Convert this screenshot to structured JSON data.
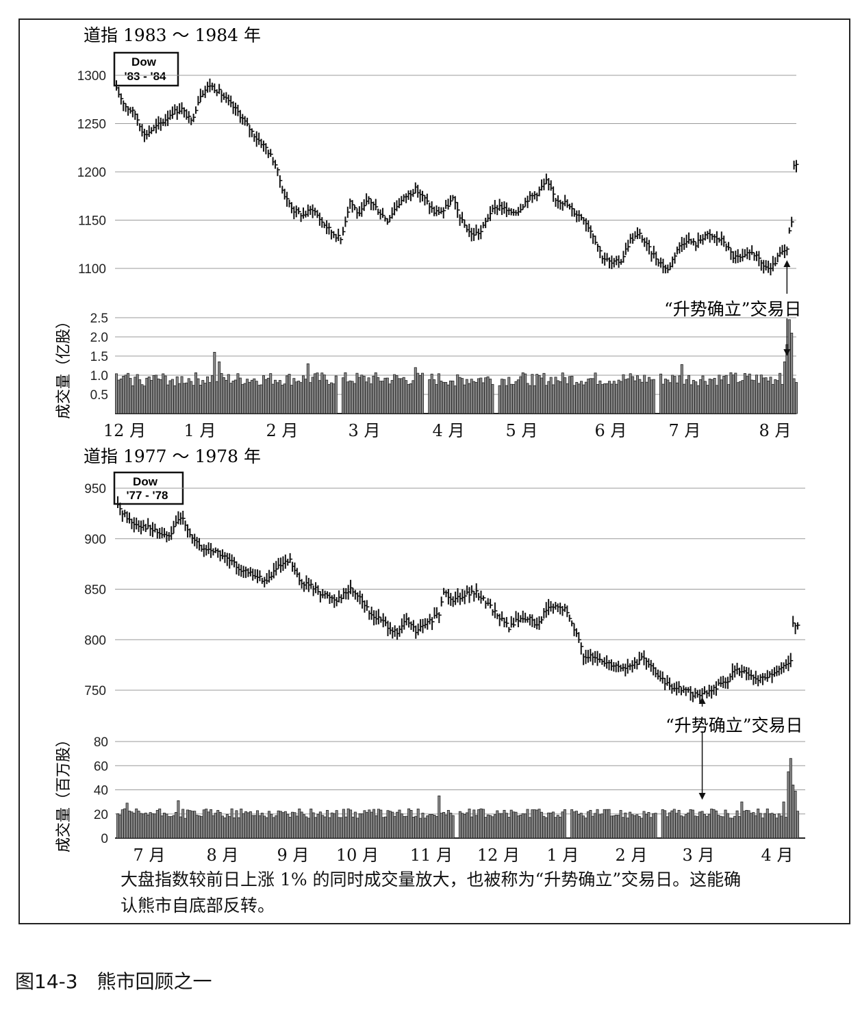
{
  "figure": {
    "label": "图14-3　熊市回顾之一",
    "caption": "大盘指数较前日上涨 1% 的同时成交量放大，也被称为“升势确立”交易日。这能确认熊市自底部反转。"
  },
  "chart_data": [
    {
      "type": "bar",
      "title": "道指 1983 ～ 1984 年",
      "badge": [
        "Dow",
        "'83 - '84"
      ],
      "ylim": [
        1080,
        1305
      ],
      "yticks": [
        1100,
        1150,
        1200,
        1250,
        1300
      ],
      "grid": true,
      "x_labels": [
        "12 月",
        "1 月",
        "2 月",
        "3 月",
        "4 月",
        "5 月",
        "6 月",
        "7 月",
        "8 月"
      ],
      "price_path": [
        [
          0,
          1285
        ],
        [
          4,
          1268
        ],
        [
          8,
          1260
        ],
        [
          12,
          1238
        ],
        [
          16,
          1245
        ],
        [
          20,
          1252
        ],
        [
          24,
          1262
        ],
        [
          28,
          1265
        ],
        [
          32,
          1252
        ],
        [
          36,
          1280
        ],
        [
          40,
          1290
        ],
        [
          44,
          1283
        ],
        [
          48,
          1272
        ],
        [
          52,
          1262
        ],
        [
          56,
          1248
        ],
        [
          60,
          1235
        ],
        [
          64,
          1225
        ],
        [
          68,
          1208
        ],
        [
          72,
          1175
        ],
        [
          76,
          1160
        ],
        [
          80,
          1155
        ],
        [
          84,
          1162
        ],
        [
          88,
          1148
        ],
        [
          92,
          1138
        ],
        [
          96,
          1130
        ],
        [
          100,
          1170
        ],
        [
          104,
          1155
        ],
        [
          108,
          1172
        ],
        [
          112,
          1160
        ],
        [
          116,
          1150
        ],
        [
          120,
          1165
        ],
        [
          124,
          1175
        ],
        [
          128,
          1182
        ],
        [
          132,
          1172
        ],
        [
          136,
          1158
        ],
        [
          140,
          1160
        ],
        [
          144,
          1172
        ],
        [
          148,
          1148
        ],
        [
          152,
          1135
        ],
        [
          156,
          1138
        ],
        [
          160,
          1158
        ],
        [
          164,
          1165
        ],
        [
          168,
          1158
        ],
        [
          172,
          1160
        ],
        [
          176,
          1172
        ],
        [
          180,
          1178
        ],
        [
          184,
          1190
        ],
        [
          188,
          1172
        ],
        [
          192,
          1168
        ],
        [
          196,
          1158
        ],
        [
          200,
          1152
        ],
        [
          204,
          1135
        ],
        [
          208,
          1112
        ],
        [
          212,
          1105
        ],
        [
          216,
          1108
        ],
        [
          220,
          1130
        ],
        [
          224,
          1135
        ],
        [
          228,
          1120
        ],
        [
          232,
          1108
        ],
        [
          236,
          1098
        ],
        [
          240,
          1120
        ],
        [
          244,
          1130
        ],
        [
          248,
          1125
        ],
        [
          252,
          1135
        ],
        [
          256,
          1132
        ],
        [
          260,
          1128
        ],
        [
          264,
          1112
        ],
        [
          268,
          1110
        ],
        [
          272,
          1118
        ],
        [
          276,
          1105
        ],
        [
          280,
          1098
        ],
        [
          284,
          1115
        ],
        [
          287,
          1118
        ],
        [
          288,
          1138
        ],
        [
          289,
          1148
        ],
        [
          290,
          1205
        ],
        [
          291,
          1210
        ]
      ],
      "volume": {
        "axis_label": "成交量（亿股）",
        "ylim": [
          0,
          2.6
        ],
        "yticks": [
          0.5,
          1.0,
          1.5,
          2.0,
          2.5
        ],
        "tick_labels": [
          "0.5",
          "1.0",
          "1.5",
          "2.0",
          "2.5"
        ],
        "base_level": 0.92,
        "spikes": [
          [
            42,
            1.6
          ],
          [
            44,
            1.35
          ],
          [
            82,
            1.3
          ],
          [
            128,
            1.2
          ],
          [
            242,
            1.28
          ],
          [
            284,
            1.05
          ],
          [
            286,
            1.35
          ],
          [
            287,
            1.8
          ],
          [
            288,
            2.45
          ],
          [
            289,
            2.1
          ]
        ]
      },
      "annotation": {
        "text": "“升势确立”交易日",
        "index": 287
      }
    },
    {
      "type": "bar",
      "title": "道指 1977 ～ 1978 年",
      "badge": [
        "Dow",
        "'77 - '78"
      ],
      "ylim": [
        740,
        960
      ],
      "yticks": [
        750,
        800,
        850,
        900,
        950
      ],
      "grid": true,
      "x_labels": [
        "7 月",
        "8 月",
        "9 月",
        "10 月",
        "11 月",
        "12 月",
        "1 月",
        "2 月",
        "3 月",
        "4 月"
      ],
      "price_path": [
        [
          0,
          932
        ],
        [
          6,
          916
        ],
        [
          12,
          912
        ],
        [
          18,
          905
        ],
        [
          22,
          902
        ],
        [
          26,
          918
        ],
        [
          28,
          921
        ],
        [
          32,
          900
        ],
        [
          36,
          890
        ],
        [
          42,
          888
        ],
        [
          48,
          878
        ],
        [
          54,
          868
        ],
        [
          60,
          862
        ],
        [
          64,
          858
        ],
        [
          68,
          870
        ],
        [
          74,
          878
        ],
        [
          78,
          858
        ],
        [
          84,
          852
        ],
        [
          88,
          845
        ],
        [
          94,
          840
        ],
        [
          100,
          850
        ],
        [
          104,
          843
        ],
        [
          108,
          826
        ],
        [
          114,
          818
        ],
        [
          120,
          805
        ],
        [
          124,
          820
        ],
        [
          128,
          808
        ],
        [
          134,
          818
        ],
        [
          138,
          825
        ],
        [
          140,
          848
        ],
        [
          144,
          840
        ],
        [
          150,
          846
        ],
        [
          154,
          846
        ],
        [
          158,
          838
        ],
        [
          164,
          822
        ],
        [
          168,
          812
        ],
        [
          172,
          820
        ],
        [
          176,
          822
        ],
        [
          180,
          814
        ],
        [
          184,
          830
        ],
        [
          188,
          832
        ],
        [
          192,
          830
        ],
        [
          196,
          812
        ],
        [
          200,
          785
        ],
        [
          206,
          780
        ],
        [
          212,
          776
        ],
        [
          218,
          772
        ],
        [
          222,
          776
        ],
        [
          226,
          782
        ],
        [
          230,
          770
        ],
        [
          236,
          755
        ],
        [
          242,
          752
        ],
        [
          248,
          745
        ],
        [
          254,
          748
        ],
        [
          258,
          755
        ],
        [
          262,
          760
        ],
        [
          266,
          772
        ],
        [
          270,
          765
        ],
        [
          274,
          760
        ],
        [
          280,
          764
        ],
        [
          286,
          772
        ],
        [
          289,
          780
        ],
        [
          290,
          818
        ],
        [
          292,
          812
        ]
      ],
      "volume": {
        "axis_label": "成交量（百万股）",
        "ylim": [
          0,
          84
        ],
        "yticks": [
          0,
          20,
          40,
          60,
          80
        ],
        "tick_labels": [
          "0",
          "20",
          "40",
          "60",
          "80"
        ],
        "base_level": 21,
        "spikes": [
          [
            4,
            29
          ],
          [
            26,
            31
          ],
          [
            138,
            35
          ],
          [
            268,
            30
          ],
          [
            286,
            30
          ],
          [
            288,
            55
          ],
          [
            289,
            66
          ],
          [
            290,
            44
          ],
          [
            291,
            39
          ]
        ]
      },
      "annotation": {
        "text": "“升势确立”交易日",
        "index": 251
      }
    }
  ]
}
